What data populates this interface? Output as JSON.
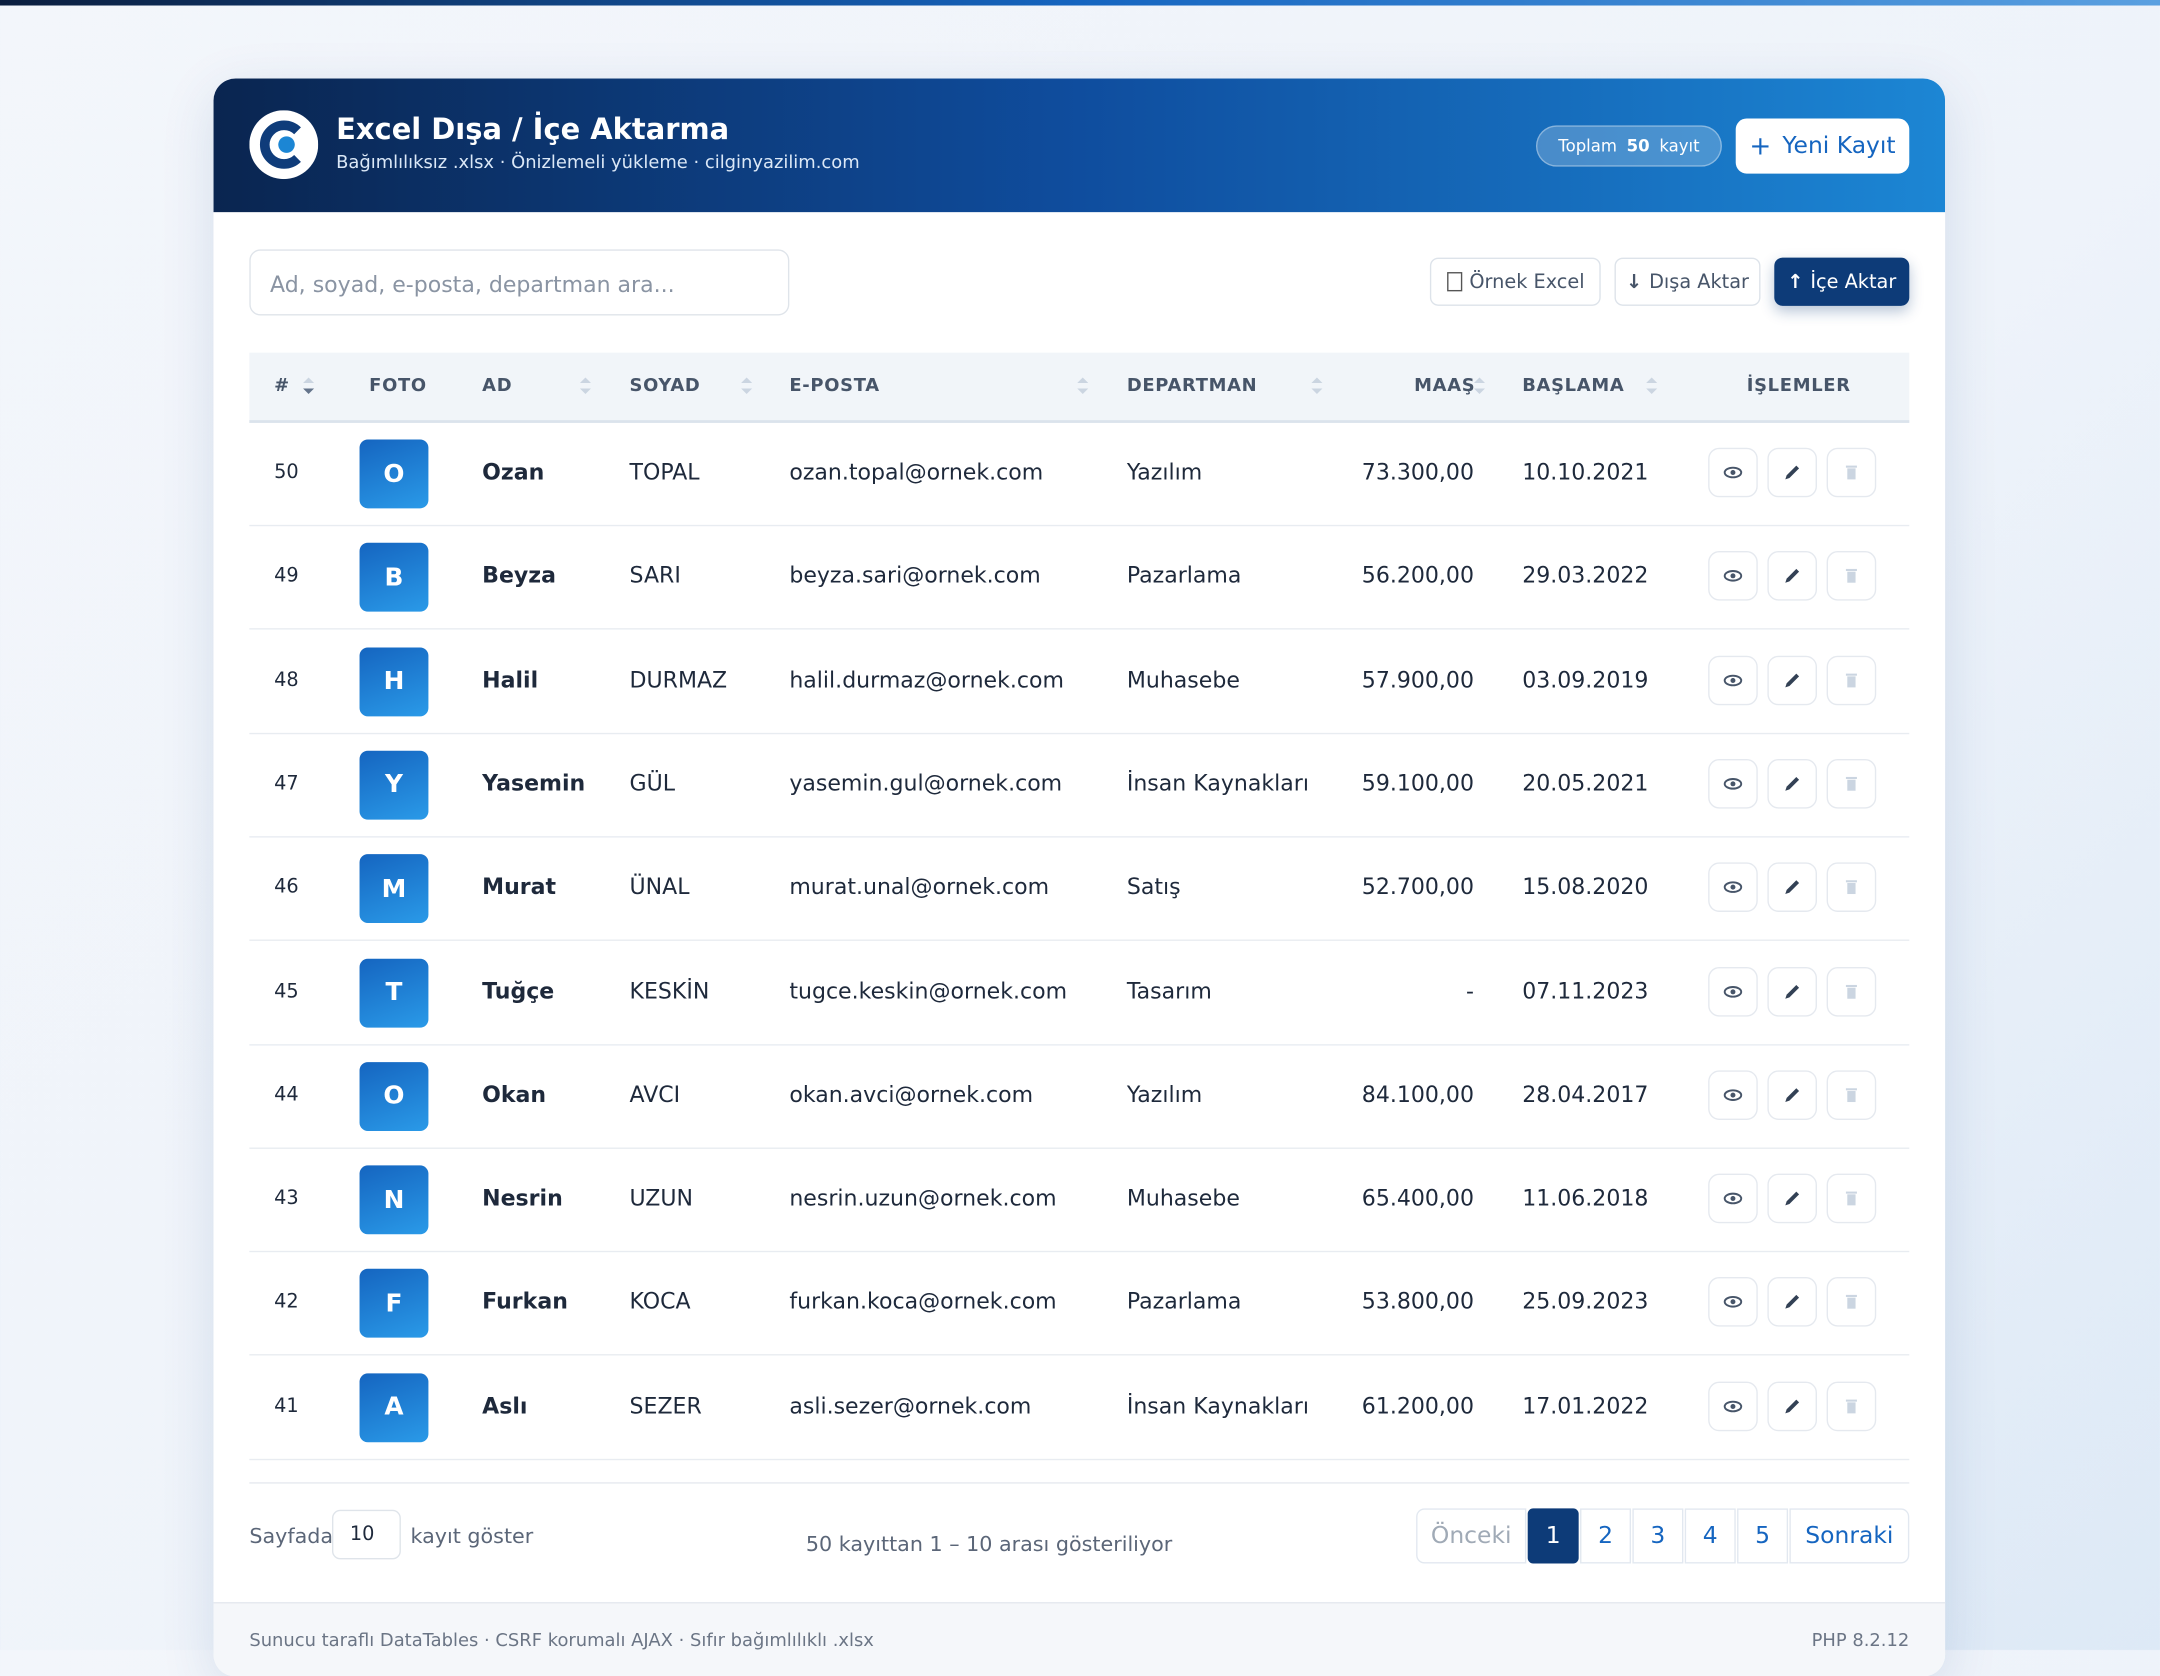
{
  "header": {
    "title": "Excel Dışa / İçe Aktarma",
    "subtitle": "Bağımlılıksız .xlsx · Önizlemeli yükleme · cilginyazilim.com",
    "badge": {
      "prefix": "Toplam",
      "count": "50",
      "suffix": "kayıt"
    },
    "new_button": "Yeni Kayıt"
  },
  "toolbar": {
    "search_placeholder": "Ad, soyad, e-posta, departman ara...",
    "buttons": [
      "Örnek Excel",
      "Dışa Aktar",
      "İçe Aktar"
    ]
  },
  "table": {
    "columns": [
      "#",
      "FOTO",
      "AD",
      "SOYAD",
      "E-POSTA",
      "DEPARTMAN",
      "MAAŞ",
      "BAŞLAMA",
      "İŞLEMLER"
    ],
    "rows": [
      [
        "50",
        "O",
        "Ozan",
        "TOPAL",
        "ozan.topal@ornek.com",
        "Yazılım",
        "73.300,00",
        "10.10.2021"
      ],
      [
        "49",
        "B",
        "Beyza",
        "SARI",
        "beyza.sari@ornek.com",
        "Pazarlama",
        "56.200,00",
        "29.03.2022"
      ],
      [
        "48",
        "H",
        "Halil",
        "DURMAZ",
        "halil.durmaz@ornek.com",
        "Muhasebe",
        "57.900,00",
        "03.09.2019"
      ],
      [
        "47",
        "Y",
        "Yasemin",
        "GÜL",
        "yasemin.gul@ornek.com",
        "İnsan Kaynakları",
        "59.100,00",
        "20.05.2021"
      ],
      [
        "46",
        "M",
        "Murat",
        "ÜNAL",
        "murat.unal@ornek.com",
        "Satış",
        "52.700,00",
        "15.08.2020"
      ],
      [
        "45",
        "T",
        "Tuğçe",
        "KESKİN",
        "tugce.keskin@ornek.com",
        "Tasarım",
        "-",
        "07.11.2023"
      ],
      [
        "44",
        "O",
        "Okan",
        "AVCI",
        "okan.avci@ornek.com",
        "Yazılım",
        "84.100,00",
        "28.04.2017"
      ],
      [
        "43",
        "N",
        "Nesrin",
        "UZUN",
        "nesrin.uzun@ornek.com",
        "Muhasebe",
        "65.400,00",
        "11.06.2018"
      ],
      [
        "42",
        "F",
        "Furkan",
        "KOCA",
        "furkan.koca@ornek.com",
        "Pazarlama",
        "53.800,00",
        "25.09.2023"
      ],
      [
        "41",
        "A",
        "Aslı",
        "SEZER",
        "asli.sezer@ornek.com",
        "İnsan Kaynakları",
        "61.200,00",
        "17.01.2022"
      ]
    ]
  },
  "pagination": {
    "length_prefix": "Sayfada",
    "length_value": "10",
    "length_suffix": "kayıt göster",
    "info": "50 kayıttan 1 – 10 arası gösteriliyor",
    "previous": "Önceki",
    "pages": [
      "1",
      "2",
      "3",
      "4",
      "5"
    ],
    "next": "Sonraki"
  },
  "footer": {
    "left": "Sunucu taraflı DataTables · CSRF korumalı AJAX · Sıfır bağımlılıklı .xlsx",
    "right": "PHP 8.2.12"
  }
}
